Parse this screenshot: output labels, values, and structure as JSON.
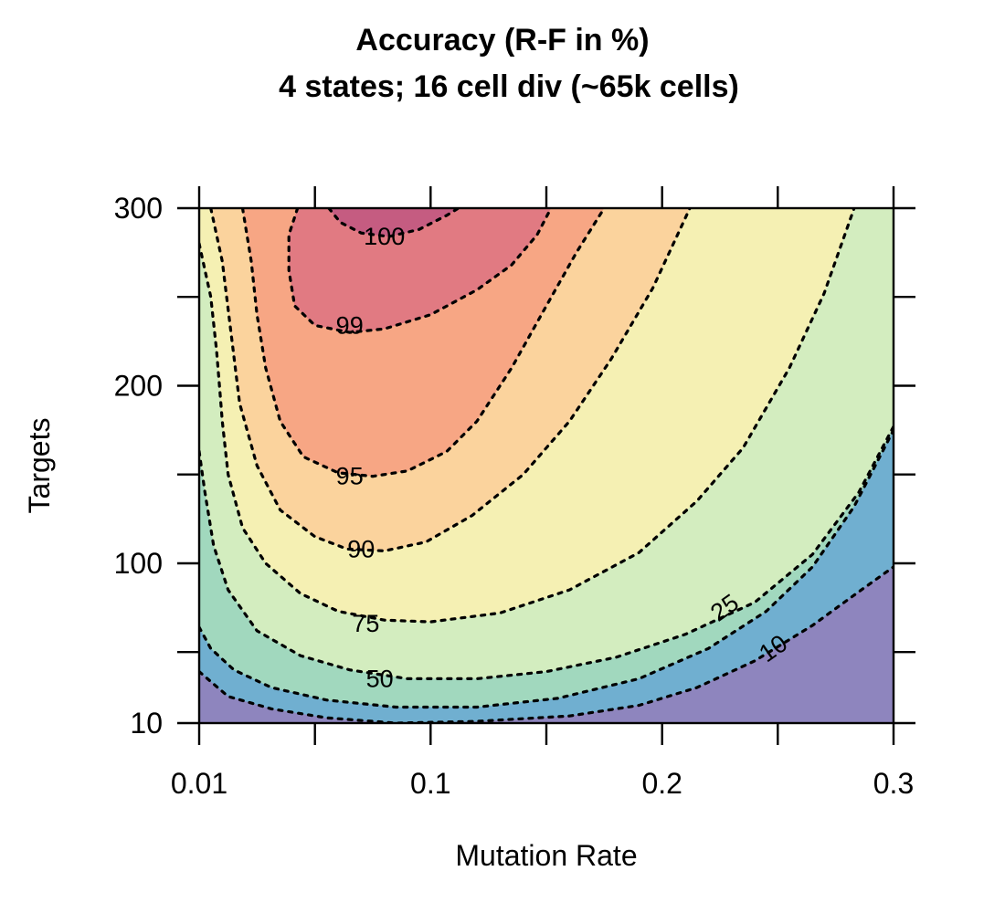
{
  "chart_data": {
    "type": "heatmap",
    "subtype": "filled-contour",
    "title": "Accuracy (R-F in %)",
    "subtitle": "4 states; 16 cell div (~65k cells)",
    "xlabel": "Mutation Rate",
    "ylabel": "Targets",
    "xlim": [
      0.01,
      0.3
    ],
    "ylim": [
      10,
      300
    ],
    "x_ticks": [
      0.01,
      0.05,
      0.1,
      0.15,
      0.2,
      0.25,
      0.3
    ],
    "x_tick_labels": [
      {
        "value": 0.01,
        "label": "0.01"
      },
      {
        "value": 0.1,
        "label": "0.1"
      },
      {
        "value": 0.2,
        "label": "0.2"
      },
      {
        "value": 0.3,
        "label": "0.3"
      }
    ],
    "y_ticks": [
      10,
      50,
      100,
      150,
      200,
      250,
      300
    ],
    "y_tick_labels": [
      {
        "value": 10,
        "label": "10"
      },
      {
        "value": 100,
        "label": "100"
      },
      {
        "value": 200,
        "label": "200"
      },
      {
        "value": 300,
        "label": "300"
      }
    ],
    "grid": false,
    "levels": [
      {
        "level": 100,
        "label": "100",
        "label_at": [
          0.08,
          284
        ],
        "label_angle": 0,
        "points": [
          [
            0.056,
            300
          ],
          [
            0.061,
            292
          ],
          [
            0.07,
            286
          ],
          [
            0.082,
            284
          ],
          [
            0.095,
            288
          ],
          [
            0.107,
            296
          ],
          [
            0.112,
            300
          ]
        ]
      },
      {
        "level": 99,
        "label": "99",
        "label_at": [
          0.065,
          234
        ],
        "label_angle": 0,
        "points": [
          [
            0.044,
            300
          ],
          [
            0.041,
            285
          ],
          [
            0.041,
            265
          ],
          [
            0.043,
            245
          ],
          [
            0.05,
            234
          ],
          [
            0.065,
            230
          ],
          [
            0.08,
            232
          ],
          [
            0.1,
            240
          ],
          [
            0.12,
            254
          ],
          [
            0.135,
            268
          ],
          [
            0.146,
            285
          ],
          [
            0.152,
            300
          ]
        ]
      },
      {
        "level": 95,
        "label": "95",
        "label_at": [
          0.065,
          149
        ],
        "label_angle": 0,
        "points": [
          [
            0.025,
            300
          ],
          [
            0.028,
            270
          ],
          [
            0.03,
            240
          ],
          [
            0.033,
            210
          ],
          [
            0.038,
            180
          ],
          [
            0.046,
            160
          ],
          [
            0.06,
            151
          ],
          [
            0.075,
            149
          ],
          [
            0.09,
            152
          ],
          [
            0.107,
            163
          ],
          [
            0.12,
            180
          ],
          [
            0.135,
            210
          ],
          [
            0.15,
            245
          ],
          [
            0.163,
            275
          ],
          [
            0.175,
            300
          ]
        ]
      },
      {
        "level": 90,
        "label": "90",
        "label_at": [
          0.07,
          108
        ],
        "label_angle": 0,
        "points": [
          [
            0.014,
            300
          ],
          [
            0.018,
            270
          ],
          [
            0.021,
            230
          ],
          [
            0.024,
            190
          ],
          [
            0.03,
            155
          ],
          [
            0.038,
            130
          ],
          [
            0.05,
            115
          ],
          [
            0.064,
            108
          ],
          [
            0.08,
            107
          ],
          [
            0.098,
            112
          ],
          [
            0.118,
            127
          ],
          [
            0.14,
            150
          ],
          [
            0.16,
            180
          ],
          [
            0.178,
            215
          ],
          [
            0.196,
            255
          ],
          [
            0.212,
            300
          ]
        ]
      },
      {
        "level": 75,
        "label": "75",
        "label_at": [
          0.072,
          66
        ],
        "label_angle": 0,
        "points": [
          [
            0.01,
            280
          ],
          [
            0.014,
            250
          ],
          [
            0.016,
            220
          ],
          [
            0.017,
            200
          ],
          [
            0.018,
            180
          ],
          [
            0.02,
            150
          ],
          [
            0.025,
            120
          ],
          [
            0.033,
            100
          ],
          [
            0.045,
            83
          ],
          [
            0.06,
            73
          ],
          [
            0.08,
            68
          ],
          [
            0.1,
            67
          ],
          [
            0.13,
            72
          ],
          [
            0.16,
            85
          ],
          [
            0.19,
            106
          ],
          [
            0.215,
            135
          ],
          [
            0.235,
            165
          ],
          [
            0.255,
            210
          ],
          [
            0.27,
            252
          ],
          [
            0.283,
            300
          ]
        ]
      },
      {
        "level": 50,
        "label": "50",
        "label_at": [
          0.078,
          35
        ],
        "label_angle": 0,
        "points": [
          [
            0.01,
            163
          ],
          [
            0.012,
            140
          ],
          [
            0.015,
            110
          ],
          [
            0.02,
            85
          ],
          [
            0.03,
            62
          ],
          [
            0.045,
            48
          ],
          [
            0.065,
            40
          ],
          [
            0.09,
            35
          ],
          [
            0.12,
            35
          ],
          [
            0.15,
            39
          ],
          [
            0.18,
            47
          ],
          [
            0.21,
            60
          ],
          [
            0.24,
            78
          ],
          [
            0.265,
            105
          ],
          [
            0.285,
            140
          ],
          [
            0.3,
            177
          ]
        ]
      },
      {
        "level": 25,
        "label": "25",
        "label_at": [
          0.227,
          75
        ],
        "label_angle": -35,
        "points": [
          [
            0.01,
            64
          ],
          [
            0.014,
            52
          ],
          [
            0.022,
            40
          ],
          [
            0.035,
            30
          ],
          [
            0.055,
            23
          ],
          [
            0.085,
            19
          ],
          [
            0.12,
            19
          ],
          [
            0.155,
            24
          ],
          [
            0.19,
            35
          ],
          [
            0.22,
            52
          ],
          [
            0.245,
            73
          ],
          [
            0.265,
            98
          ],
          [
            0.283,
            132
          ],
          [
            0.3,
            175
          ]
        ]
      },
      {
        "level": 10,
        "label": "10",
        "label_at": [
          0.248,
          52
        ],
        "label_angle": -35,
        "points": [
          [
            0.01,
            39
          ],
          [
            0.02,
            25
          ],
          [
            0.035,
            18
          ],
          [
            0.055,
            13
          ],
          [
            0.085,
            10
          ],
          [
            0.12,
            11
          ],
          [
            0.16,
            14
          ],
          [
            0.19,
            20
          ],
          [
            0.215,
            30
          ],
          [
            0.24,
            45
          ],
          [
            0.265,
            65
          ],
          [
            0.285,
            84
          ],
          [
            0.3,
            98
          ]
        ]
      }
    ],
    "fill_colors": [
      "#8E85BE",
      "#70AFD0",
      "#A1D8BE",
      "#D3EDBF",
      "#F5F0B3",
      "#FBD39D",
      "#F7A684",
      "#E17A82",
      "#C55C81"
    ]
  }
}
